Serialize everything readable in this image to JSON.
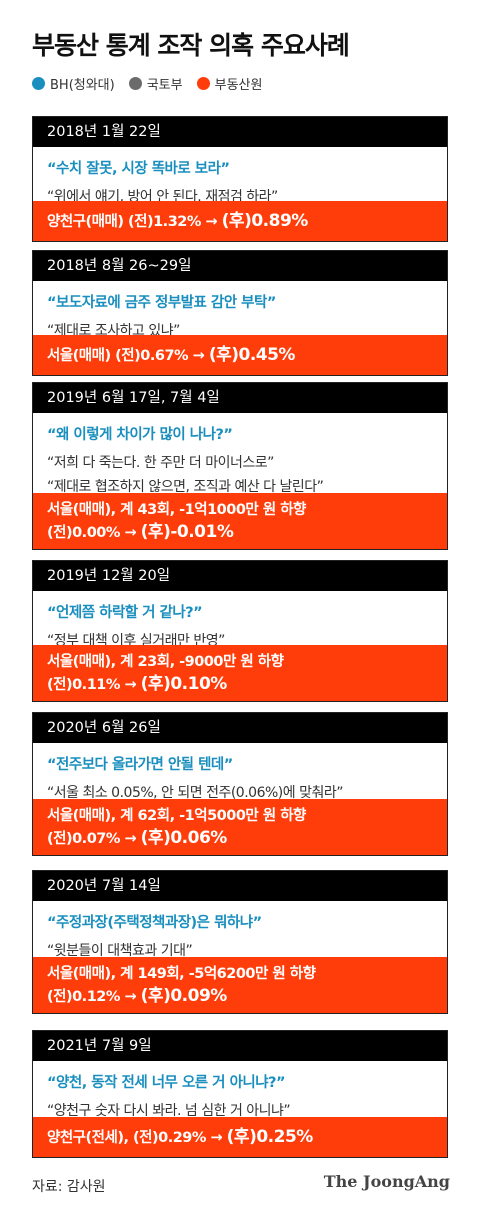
{
  "title": "부동산 통계 조작 의혹 주요사례",
  "legend": [
    {
      "label": "BH(청와대)",
      "color": "#1a8fbf"
    },
    {
      "label": "국토부",
      "color": "#6b6b6b"
    },
    {
      "label": "부동산원",
      "color": "#ff3d0a"
    }
  ],
  "cards": [
    {
      "date": "2018년 1월 22일",
      "quote": "“수치 잘못, 시장 똑바로 보라”",
      "subs": [
        "“위에서 얘기, 방어 안 된다. 재점검 하라”"
      ],
      "bar": [
        {
          "a": "양천구(매매)  (전)1.32% → ",
          "b": "(후)0.89%"
        }
      ]
    },
    {
      "date": "2018년 8월 26~29일",
      "quote": "“보도자료에 금주 정부발표 감안 부탁”",
      "subs": [
        "“제대로 조사하고 있냐”"
      ],
      "bar": [
        {
          "a": "서울(매매) (전)0.67% → ",
          "b": "(후)0.45%"
        }
      ]
    },
    {
      "date": "2019년 6월 17일, 7월 4일",
      "quote": "“왜 이렇게 차이가 많이 나나?”",
      "subs": [
        "“저희 다 죽는다. 한 주만 더 마이너스로”",
        "“제대로 협조하지 않으면, 조직과 예산 다 날린다”"
      ],
      "bar": [
        {
          "a": "서울(매매), 계 43회, -1억1000만 원 하향",
          "b": ""
        },
        {
          "a": "(전)0.00% → ",
          "b": "(후)-0.01%"
        }
      ]
    },
    {
      "date": "2019년 12월 20일",
      "quote": "“언제쯤 하락할 거 같나?”",
      "subs": [
        "“정부 대책 이후 실거래만 반영”"
      ],
      "bar": [
        {
          "a": "서울(매매), 계 23회, -9000만 원 하향",
          "b": ""
        },
        {
          "a": "(전)0.11% → ",
          "b": "(후)0.10%"
        }
      ]
    },
    {
      "date": "2020년 6월 26일",
      "quote": "“전주보다 올라가면 안될 텐데”",
      "subs": [
        "“서울 최소 0.05%, 안 되면 전주(0.06%)에 맞춰라”"
      ],
      "bar": [
        {
          "a": "서울(매매), 계 62회, -1억5000만 원 하향",
          "b": ""
        },
        {
          "a": "(전)0.07% → ",
          "b": "(후)0.06%"
        }
      ]
    },
    {
      "date": "2020년 7월 14일",
      "quote": "“주정과장(주택정책과장)은 뭐하냐”",
      "subs": [
        "“윗분들이 대책효과 기대”"
      ],
      "bar": [
        {
          "a": "서울(매매), 계 149회, -5억6200만 원 하향",
          "b": ""
        },
        {
          "a": "(전)0.12% → ",
          "b": "(후)0.09%"
        }
      ]
    },
    {
      "date": "2021년 7월 9일",
      "quote": "“양천, 동작 전세 너무 오른 거 아니냐?”",
      "subs": [
        "“양천구 숫자 다시 봐라. 넘 심한 거 아니냐”"
      ],
      "bar": [
        {
          "a": "양천구(전세), (전)0.29% → ",
          "b": "(후)0.25%"
        }
      ]
    }
  ],
  "footer": {
    "source": "자료: 감사원",
    "logo": "The JoongAng"
  }
}
